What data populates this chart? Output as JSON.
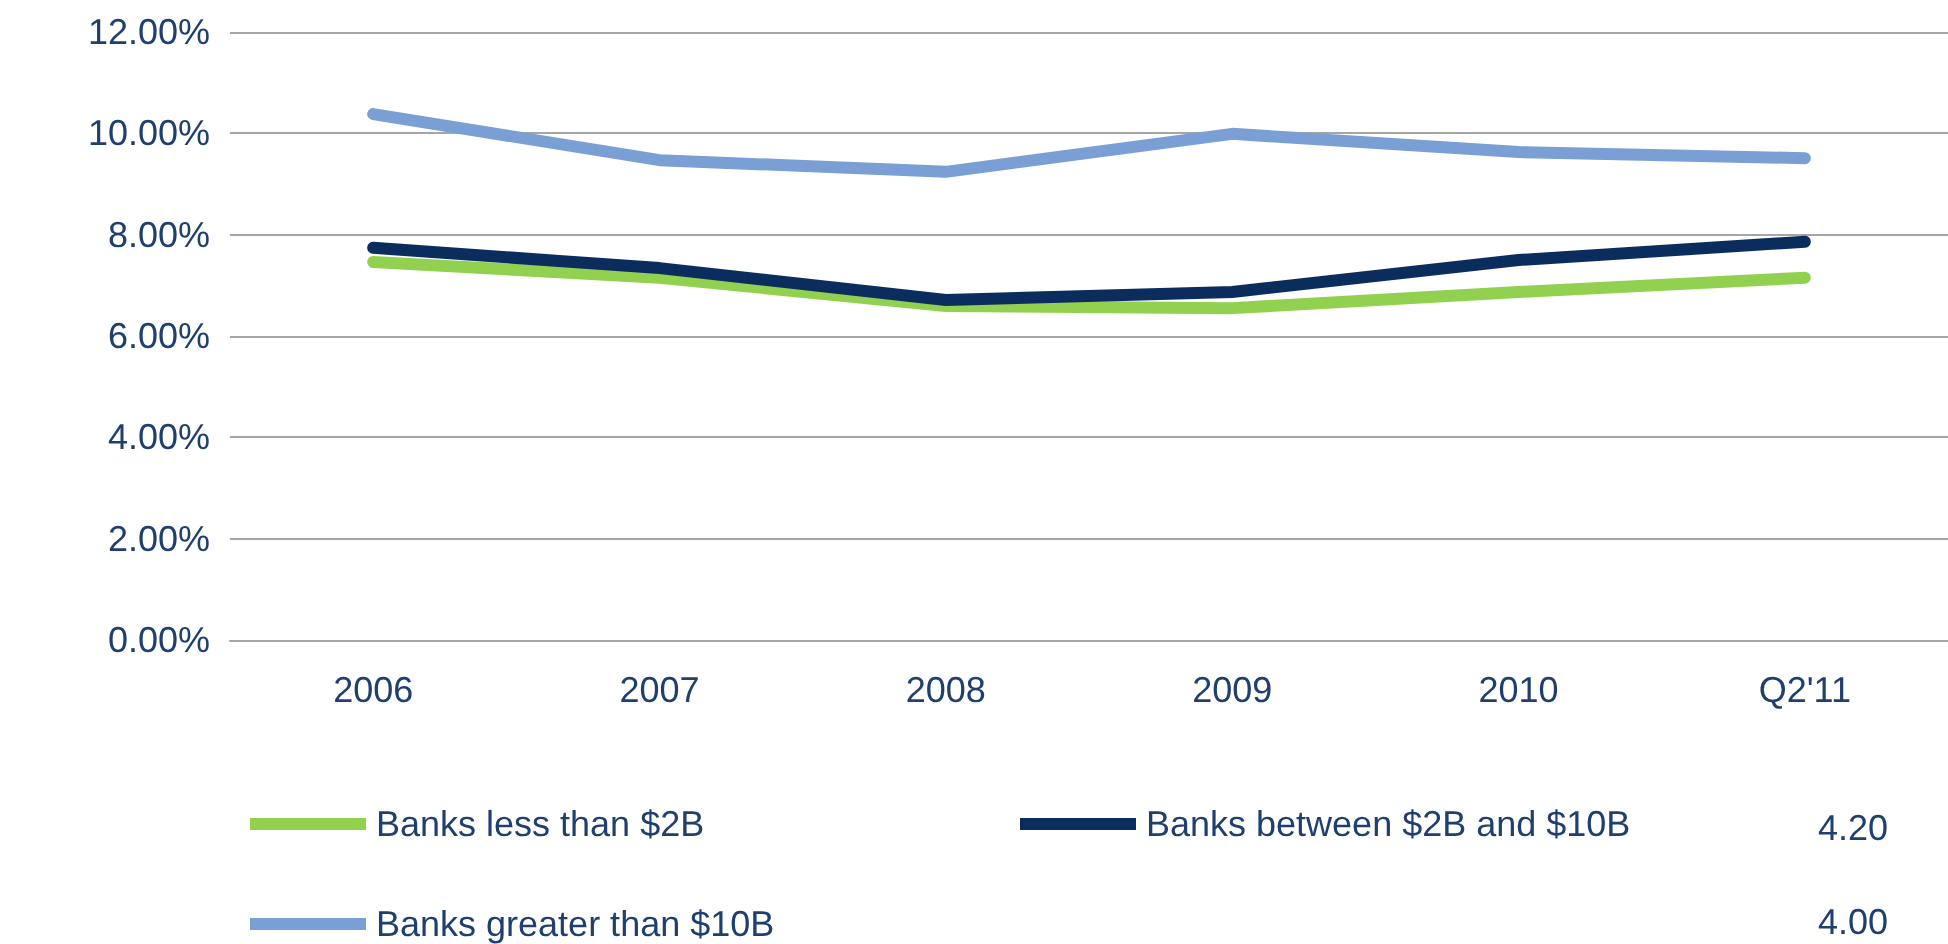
{
  "chart_data": {
    "type": "line",
    "categories": [
      "2006",
      "2007",
      "2008",
      "2009",
      "2010",
      "Q2'11"
    ],
    "series": [
      {
        "name": "Banks less than $2B",
        "color": "#92d050",
        "values": [
          7.46,
          7.15,
          6.59,
          6.55,
          6.87,
          7.15
        ]
      },
      {
        "name": "Banks between $2B and $10B",
        "color": "#0b2d5e",
        "values": [
          7.74,
          7.34,
          6.71,
          6.87,
          7.5,
          7.86
        ]
      },
      {
        "name": "Banks greater than $10B",
        "color": "#7a9fd4",
        "values": [
          10.38,
          9.47,
          9.24,
          9.99,
          9.63,
          9.51
        ]
      }
    ],
    "ylim": [
      0,
      12
    ],
    "yticks": [
      {
        "value": 0,
        "label": "0.00%"
      },
      {
        "value": 2,
        "label": "2.00%"
      },
      {
        "value": 4,
        "label": "4.00%"
      },
      {
        "value": 6,
        "label": "6.00%"
      },
      {
        "value": 8,
        "label": "8.00%"
      },
      {
        "value": 10,
        "label": "10.00%"
      },
      {
        "value": 12,
        "label": "12.00%"
      }
    ],
    "grid": "y",
    "legend": "bottom",
    "marker": "none",
    "line_style": "solid",
    "annotations": [
      "4.20",
      "4.00"
    ]
  }
}
